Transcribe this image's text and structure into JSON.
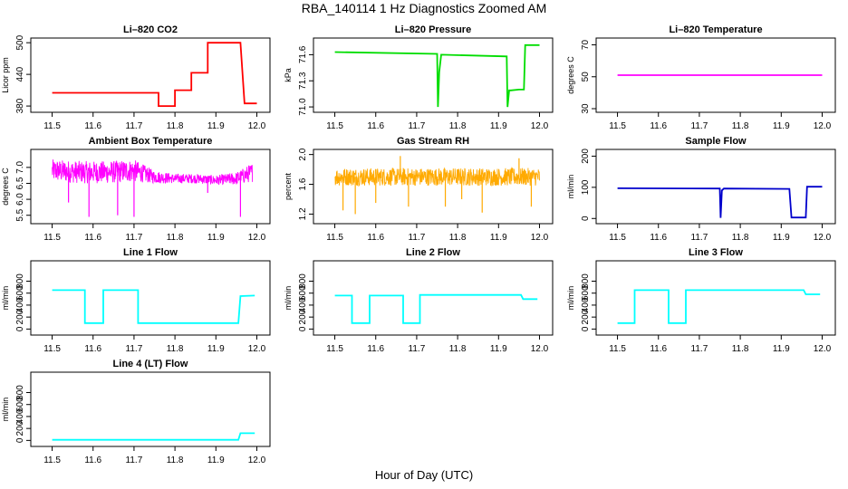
{
  "figure": {
    "title": "RBA_140114  1 Hz Diagnostics Zoomed AM",
    "xlabel": "Hour of Day (UTC)"
  },
  "chart_data": [
    {
      "type": "line",
      "title": "Li–820 CO2",
      "ylabel": "Licor ppm",
      "color": "#ff0000",
      "xlim": [
        11.47,
        12.01
      ],
      "ylim": [
        375,
        502
      ],
      "xticks": [
        11.5,
        11.6,
        11.7,
        11.8,
        11.9,
        12.0
      ],
      "xtick_labels": [
        "11.5",
        "11.6",
        "11.7",
        "11.8",
        "11.9",
        "12.0"
      ],
      "yticks": [
        380,
        440,
        500
      ],
      "ytick_labels": [
        "380",
        "440",
        "500"
      ],
      "series": [
        {
          "name": "CO2",
          "x": [
            11.5,
            11.76,
            11.76,
            11.8,
            11.8,
            11.84,
            11.84,
            11.88,
            11.88,
            11.96,
            11.97,
            12.0
          ],
          "y": [
            405,
            405,
            380,
            380,
            410,
            410,
            443,
            443,
            500,
            500,
            385,
            385
          ]
        }
      ]
    },
    {
      "type": "line",
      "title": "Li–820 Pressure",
      "ylabel": "kPa",
      "color": "#00dd00",
      "xlim": [
        11.47,
        12.01
      ],
      "ylim": [
        70.98,
        71.75
      ],
      "xticks": [
        11.5,
        11.6,
        11.7,
        11.8,
        11.9,
        12.0
      ],
      "xtick_labels": [
        "11.5",
        "11.6",
        "11.7",
        "11.8",
        "11.9",
        "12.0"
      ],
      "yticks": [
        71.0,
        71.3,
        71.6
      ],
      "ytick_labels": [
        "71.0",
        "71.3",
        "71.6"
      ],
      "series": [
        {
          "name": "Pressure",
          "x": [
            11.5,
            11.75,
            11.752,
            11.755,
            11.76,
            11.92,
            11.922,
            11.926,
            11.93,
            11.95,
            11.962,
            11.965,
            12.0
          ],
          "y": [
            71.63,
            71.61,
            71.0,
            71.4,
            71.6,
            71.58,
            71.0,
            71.19,
            71.19,
            71.2,
            71.2,
            71.71,
            71.71
          ]
        }
      ]
    },
    {
      "type": "line",
      "title": "Li–820 Temperature",
      "ylabel": "degrees C",
      "color": "#ff00ff",
      "xlim": [
        11.47,
        12.01
      ],
      "ylim": [
        30,
        72
      ],
      "xticks": [
        11.5,
        11.6,
        11.7,
        11.8,
        11.9,
        12.0
      ],
      "xtick_labels": [
        "11.5",
        "11.6",
        "11.7",
        "11.8",
        "11.9",
        "12.0"
      ],
      "yticks": [
        30,
        50,
        70
      ],
      "ytick_labels": [
        "30",
        "50",
        "70"
      ],
      "series": [
        {
          "name": "Temperature",
          "x": [
            11.5,
            12.0
          ],
          "y": [
            51,
            51
          ]
        }
      ]
    },
    {
      "type": "line",
      "title": "Ambient Box Temperature",
      "ylabel": "degrees C",
      "color": "#ff00ff",
      "xlim": [
        11.47,
        12.01
      ],
      "ylim": [
        5.35,
        7.45
      ],
      "xticks": [
        11.5,
        11.6,
        11.7,
        11.8,
        11.9,
        12.0
      ],
      "xtick_labels": [
        "11.5",
        "11.6",
        "11.7",
        "11.8",
        "11.9",
        "12.0"
      ],
      "yticks": [
        5.5,
        6.0,
        6.5,
        7.0
      ],
      "ytick_labels": [
        "5.5",
        "6.0",
        "6.5",
        "7.0"
      ],
      "series": [
        {
          "name": "Ambient",
          "x": [
            11.5,
            11.57,
            11.64,
            11.7,
            11.75,
            11.8,
            11.85,
            11.9,
            11.95,
            11.99
          ],
          "y": [
            6.9,
            6.85,
            6.85,
            6.9,
            6.7,
            6.65,
            6.65,
            6.6,
            6.65,
            6.85
          ],
          "band": [
            0.35,
            0.35,
            0.35,
            0.35,
            0.2,
            0.15,
            0.15,
            0.15,
            0.2,
            0.3
          ],
          "spikes": [
            [
              11.59,
              5.45
            ],
            [
              11.66,
              5.5
            ],
            [
              11.7,
              5.45
            ],
            [
              11.96,
              5.45
            ],
            [
              11.54,
              5.9
            ],
            [
              11.88,
              6.2
            ]
          ]
        }
      ]
    },
    {
      "type": "line",
      "title": "Gas Stream RH",
      "ylabel": "percent",
      "color": "#ffaa00",
      "xlim": [
        11.47,
        12.01
      ],
      "ylim": [
        1.12,
        2.02
      ],
      "xticks": [
        11.5,
        11.6,
        11.7,
        11.8,
        11.9,
        12.0
      ],
      "xtick_labels": [
        "11.5",
        "11.6",
        "11.7",
        "11.8",
        "11.9",
        "12.0"
      ],
      "yticks": [
        1.2,
        1.6,
        2.0
      ],
      "ytick_labels": [
        "1.2",
        "1.6",
        "2.0"
      ],
      "series": [
        {
          "name": "RH",
          "x": [
            11.5,
            11.6,
            11.7,
            11.8,
            11.9,
            12.0
          ],
          "y": [
            1.7,
            1.7,
            1.7,
            1.7,
            1.7,
            1.7
          ],
          "band": [
            0.12,
            0.12,
            0.12,
            0.12,
            0.12,
            0.12
          ],
          "spikes": [
            [
              11.52,
              1.25
            ],
            [
              11.55,
              1.2
            ],
            [
              11.6,
              1.35
            ],
            [
              11.66,
              1.98
            ],
            [
              11.68,
              1.3
            ],
            [
              11.77,
              1.3
            ],
            [
              11.81,
              1.4
            ],
            [
              11.86,
              1.22
            ],
            [
              11.95,
              1.95
            ],
            [
              11.98,
              1.3
            ]
          ]
        }
      ]
    },
    {
      "type": "line",
      "title": "Sample Flow",
      "ylabel": "ml/min",
      "color": "#0000cc",
      "xlim": [
        11.47,
        12.01
      ],
      "ylim": [
        -5,
        210
      ],
      "xticks": [
        11.5,
        11.6,
        11.7,
        11.8,
        11.9,
        12.0
      ],
      "xtick_labels": [
        "11.5",
        "11.6",
        "11.7",
        "11.8",
        "11.9",
        "12.0"
      ],
      "yticks": [
        0,
        100,
        200
      ],
      "ytick_labels": [
        "0",
        "100",
        "200"
      ],
      "series": [
        {
          "name": "Sample",
          "x": [
            11.5,
            11.75,
            11.752,
            11.755,
            11.76,
            11.92,
            11.925,
            11.96,
            11.963,
            12.0
          ],
          "y": [
            97,
            96,
            2,
            90,
            96,
            95,
            3,
            3,
            102,
            102
          ]
        }
      ]
    },
    {
      "type": "line",
      "title": "Line 1 Flow",
      "ylabel": "ml/min",
      "color": "#00ffff",
      "xlim": [
        11.47,
        12.01
      ],
      "ylim": [
        -40,
        1080
      ],
      "xticks": [
        11.5,
        11.6,
        11.7,
        11.8,
        11.9,
        12.0
      ],
      "xtick_labels": [
        "11.5",
        "11.6",
        "11.7",
        "11.8",
        "11.9",
        "12.0"
      ],
      "yticks": [
        0,
        200,
        400,
        600,
        800
      ],
      "ytick_labels": [
        "0",
        "200",
        "400",
        "600",
        "800"
      ],
      "series": [
        {
          "name": "Line1",
          "x": [
            11.5,
            11.58,
            11.58,
            11.625,
            11.625,
            11.71,
            11.71,
            11.955,
            11.96,
            11.995
          ],
          "y": [
            650,
            650,
            100,
            100,
            650,
            650,
            100,
            100,
            550,
            560
          ]
        }
      ]
    },
    {
      "type": "line",
      "title": "Line 2 Flow",
      "ylabel": "ml/min",
      "color": "#00ffff",
      "xlim": [
        11.47,
        12.01
      ],
      "ylim": [
        -40,
        1080
      ],
      "xticks": [
        11.5,
        11.6,
        11.7,
        11.8,
        11.9,
        12.0
      ],
      "xtick_labels": [
        "11.5",
        "11.6",
        "11.7",
        "11.8",
        "11.9",
        "12.0"
      ],
      "yticks": [
        0,
        200,
        400,
        600,
        800
      ],
      "ytick_labels": [
        "0",
        "200",
        "400",
        "600",
        "800"
      ],
      "series": [
        {
          "name": "Line2",
          "x": [
            11.5,
            11.542,
            11.542,
            11.585,
            11.585,
            11.667,
            11.667,
            11.708,
            11.708,
            11.955,
            11.96,
            11.995
          ],
          "y": [
            560,
            560,
            100,
            100,
            560,
            560,
            100,
            100,
            570,
            570,
            500,
            500
          ]
        }
      ]
    },
    {
      "type": "line",
      "title": "Line 3 Flow",
      "ylabel": "ml/min",
      "color": "#00ffff",
      "xlim": [
        11.47,
        12.01
      ],
      "ylim": [
        -40,
        1080
      ],
      "xticks": [
        11.5,
        11.6,
        11.7,
        11.8,
        11.9,
        12.0
      ],
      "xtick_labels": [
        "11.5",
        "11.6",
        "11.7",
        "11.8",
        "11.9",
        "12.0"
      ],
      "yticks": [
        0,
        200,
        400,
        600,
        800
      ],
      "ytick_labels": [
        "0",
        "200",
        "400",
        "600",
        "800"
      ],
      "series": [
        {
          "name": "Line3",
          "x": [
            11.5,
            11.542,
            11.542,
            11.625,
            11.625,
            11.667,
            11.667,
            11.955,
            11.96,
            11.995
          ],
          "y": [
            100,
            100,
            650,
            650,
            100,
            100,
            650,
            650,
            580,
            580
          ]
        }
      ]
    },
    {
      "type": "line",
      "title": "Line 4 (LT) Flow",
      "ylabel": "ml/min",
      "color": "#00ffff",
      "xlim": [
        11.47,
        12.01
      ],
      "ylim": [
        -40,
        1080
      ],
      "xticks": [
        11.5,
        11.6,
        11.7,
        11.8,
        11.9,
        12.0
      ],
      "xtick_labels": [
        "11.5",
        "11.6",
        "11.7",
        "11.8",
        "11.9",
        "12.0"
      ],
      "yticks": [
        0,
        200,
        400,
        600,
        800
      ],
      "ytick_labels": [
        "0",
        "200",
        "400",
        "600",
        "800"
      ],
      "series": [
        {
          "name": "Line4",
          "x": [
            11.5,
            11.955,
            11.96,
            11.995
          ],
          "y": [
            10,
            10,
            120,
            120
          ]
        }
      ]
    }
  ]
}
